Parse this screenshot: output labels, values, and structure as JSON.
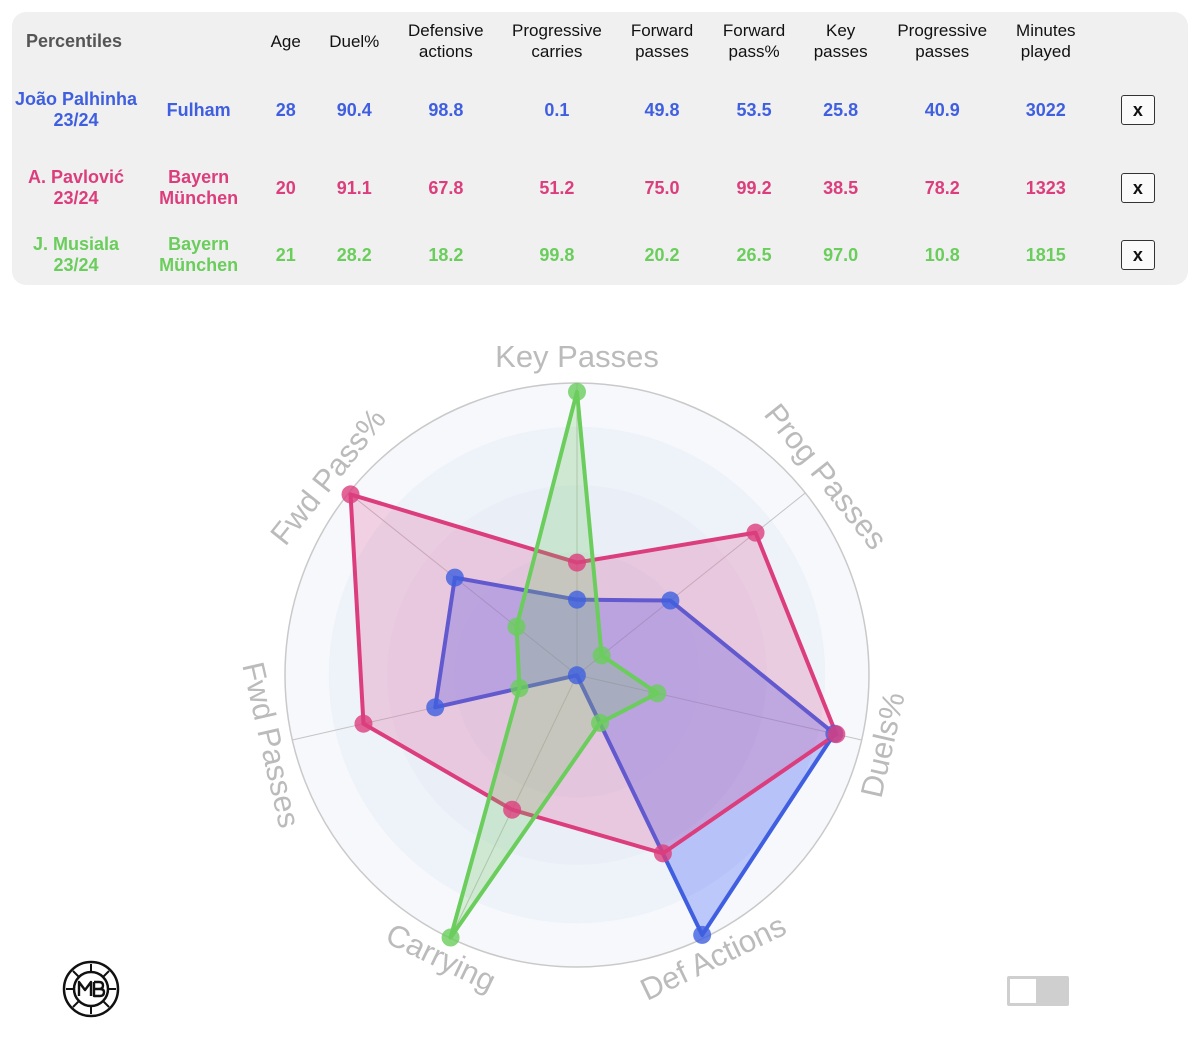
{
  "table": {
    "header_label": "Percentiles",
    "columns": [
      "Age",
      "Duel%",
      "Defensive actions",
      "Progressive carries",
      "Forward passes",
      "Forward pass%",
      "Key passes",
      "Progressive passes",
      "Minutes played"
    ],
    "remove_label": "x",
    "players": [
      {
        "name": "João Palhinha 23/24",
        "team": "Fulham",
        "color": "#3f5fe0",
        "values": [
          "28",
          "90.4",
          "98.8",
          "0.1",
          "49.8",
          "53.5",
          "25.8",
          "40.9",
          "3022"
        ]
      },
      {
        "name": "A. Pavlović 23/24",
        "team": "Bayern München",
        "color": "#dc3d7d",
        "values": [
          "20",
          "91.1",
          "67.8",
          "51.2",
          "75.0",
          "99.2",
          "38.5",
          "78.2",
          "1323"
        ]
      },
      {
        "name": "J. Musiala 23/24",
        "team": "Bayern München",
        "color": "#6acd5c",
        "values": [
          "21",
          "28.2",
          "18.2",
          "99.8",
          "20.2",
          "26.5",
          "97.0",
          "10.8",
          "1815"
        ]
      }
    ]
  },
  "chart_data": {
    "type": "radar",
    "axes": [
      "Key Passes",
      "Prog Passes",
      "Duels%",
      "Def Actions",
      "Carrying",
      "Fwd Passes",
      "Fwd Pass%"
    ],
    "range": [
      0,
      100
    ],
    "series": [
      {
        "name": "João Palhinha 23/24",
        "color": "#3f5fe0",
        "fill": "rgba(80,110,245,0.35)",
        "values": [
          25.8,
          40.9,
          90.4,
          98.8,
          0.1,
          49.8,
          53.5
        ]
      },
      {
        "name": "A. Pavlović 23/24",
        "color": "#dc3d7d",
        "fill": "rgba(225,70,140,0.22)",
        "values": [
          38.5,
          78.2,
          91.1,
          67.8,
          51.2,
          75.0,
          99.2
        ]
      },
      {
        "name": "J. Musiala 23/24",
        "color": "#6acd5c",
        "fill": "rgba(110,205,95,0.25)",
        "values": [
          97.0,
          10.8,
          28.2,
          18.2,
          99.8,
          20.2,
          26.5
        ]
      }
    ],
    "grid": true,
    "axis_label_color": "#bbbbbb"
  }
}
